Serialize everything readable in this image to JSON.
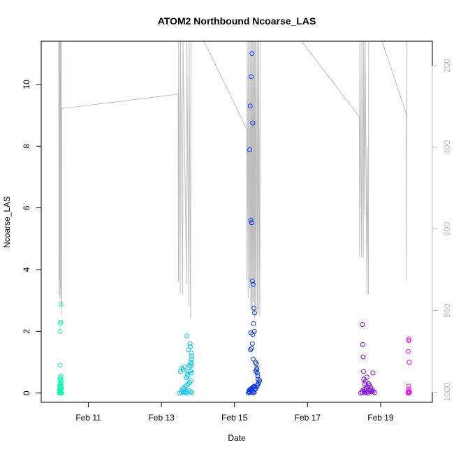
{
  "chart_data": {
    "type": "scatter",
    "title": "ATOM2 Northbound Ncoarse_LAS",
    "xlabel": "Date",
    "ylabel": "Ncoarse_LAS",
    "xlim": [
      "2014-02-09 17:00",
      "2014-02-20 10:00"
    ],
    "ylim": [
      -0.3,
      11.4
    ],
    "y_ticks": [
      0,
      2,
      4,
      6,
      8,
      10
    ],
    "x_ticks": [
      {
        "date": "2014-02-11",
        "label": "Feb 11"
      },
      {
        "date": "2014-02-13",
        "label": "Feb 13"
      },
      {
        "date": "2014-02-15",
        "label": "Feb 15"
      },
      {
        "date": "2014-02-17",
        "label": "Feb 17"
      },
      {
        "date": "2014-02-19",
        "label": "Feb 19"
      }
    ],
    "right_axis": {
      "quantity": "depth",
      "reversed": true,
      "range": [
        140,
        1025
      ],
      "ticks": [
        200,
        400,
        600,
        800,
        1000
      ],
      "color": "#bdbdbd"
    },
    "colors": {
      "feb10": "#00ffb3",
      "feb13": "#00c7ff",
      "feb15": "#0033ff",
      "feb18": "#7a00ff",
      "feb19": "#ff00ff",
      "depth_line": "#bdbdbd"
    },
    "series": [
      {
        "color": "#00ffb3",
        "x": [
          "2014-02-10 05:00",
          "2014-02-10 05:10",
          "2014-02-10 05:20",
          "2014-02-10 05:30",
          "2014-02-10 05:40",
          "2014-02-10 05:50",
          "2014-02-10 06:00",
          "2014-02-10 06:10",
          "2014-02-10 06:20",
          "2014-02-10 05:05",
          "2014-02-10 05:25",
          "2014-02-10 05:45",
          "2014-02-10 06:05",
          "2014-02-10 05:15",
          "2014-02-10 05:35",
          "2014-02-10 05:55",
          "2014-02-10 06:15",
          "2014-02-10 05:20",
          "2014-02-10 05:40",
          "2014-02-10 06:00",
          "2014-02-10 05:30",
          "2014-02-10 05:50",
          "2014-02-10 05:10",
          "2014-02-10 06:10",
          "2014-02-10 05:30",
          "2014-02-10 05:40",
          "2014-02-10 05:50",
          "2014-02-10 06:00",
          "2014-02-10 05:20",
          "2014-02-10 05:35",
          "2014-02-10 05:45",
          "2014-02-10 05:55"
        ],
        "y": [
          0.0,
          0.02,
          0.01,
          0.05,
          0.0,
          0.03,
          0.08,
          0.01,
          0.0,
          0.1,
          0.12,
          0.15,
          0.2,
          0.25,
          0.3,
          0.35,
          0.4,
          0.45,
          0.5,
          0.55,
          0.9,
          0.3,
          0.2,
          0.15,
          2.0,
          2.25,
          2.3,
          2.88,
          0.05,
          0.06,
          0.07,
          0.04
        ]
      },
      {
        "color": "#00c7ff",
        "x": [
          "2014-02-13 12:00",
          "2014-02-13 13:00",
          "2014-02-13 14:00",
          "2014-02-13 15:00",
          "2014-02-13 16:00",
          "2014-02-13 17:00",
          "2014-02-13 18:00",
          "2014-02-13 19:00",
          "2014-02-13 20:00",
          "2014-02-13 13:30",
          "2014-02-13 14:30",
          "2014-02-13 15:30",
          "2014-02-13 16:30",
          "2014-02-13 17:30",
          "2014-02-13 18:30",
          "2014-02-13 19:30",
          "2014-02-13 12:30",
          "2014-02-13 13:15",
          "2014-02-13 14:15",
          "2014-02-13 15:15",
          "2014-02-13 16:15",
          "2014-02-13 17:15",
          "2014-02-13 18:15",
          "2014-02-13 19:15",
          "2014-02-13 19:45",
          "2014-02-13 20:00",
          "2014-02-13 19:30",
          "2014-02-13 19:00",
          "2014-02-13 18:45",
          "2014-02-13 17:45",
          "2014-02-13 16:45",
          "2014-02-13 18:00",
          "2014-02-13 17:00",
          "2014-02-13 19:50",
          "2014-02-13 19:40",
          "2014-02-13 19:20",
          "2014-02-13 19:10"
        ],
        "y": [
          0.0,
          0.02,
          0.05,
          0.01,
          0.03,
          0.0,
          0.08,
          0.04,
          0.02,
          0.1,
          0.15,
          0.2,
          0.25,
          0.3,
          0.35,
          0.4,
          0.7,
          0.8,
          0.75,
          0.85,
          0.5,
          0.6,
          0.9,
          1.0,
          1.1,
          1.2,
          1.3,
          1.5,
          1.6,
          1.4,
          1.85,
          0.7,
          0.55,
          0.65,
          0.95,
          0.88,
          0.72
        ]
      },
      {
        "color": "#0033ff",
        "x": [
          "2014-02-15 09:00",
          "2014-02-15 09:30",
          "2014-02-15 10:00",
          "2014-02-15 10:30",
          "2014-02-15 11:00",
          "2014-02-15 11:30",
          "2014-02-15 12:00",
          "2014-02-15 12:30",
          "2014-02-15 13:00",
          "2014-02-15 13:30",
          "2014-02-15 14:00",
          "2014-02-15 14:30",
          "2014-02-15 15:00",
          "2014-02-15 15:30",
          "2014-02-15 16:00",
          "2014-02-15 16:30",
          "2014-02-15 10:00",
          "2014-02-15 10:45",
          "2014-02-15 11:15",
          "2014-02-15 11:45",
          "2014-02-15 12:15",
          "2014-02-15 12:45",
          "2014-02-15 13:15",
          "2014-02-15 13:45",
          "2014-02-15 14:15",
          "2014-02-15 14:45",
          "2014-02-15 10:15",
          "2014-02-15 11:00",
          "2014-02-15 11:30",
          "2014-02-15 12:00",
          "2014-02-15 12:30",
          "2014-02-15 13:00",
          "2014-02-15 10:30",
          "2014-02-15 11:15",
          "2014-02-15 12:00",
          "2014-02-15 10:45",
          "2014-02-15 11:45",
          "2014-02-15 12:15",
          "2014-02-15 10:00",
          "2014-02-15 10:30",
          "2014-02-15 11:00",
          "2014-02-15 11:30",
          "2014-02-15 12:00",
          "2014-02-15 12:30",
          "2014-02-15 13:00",
          "2014-02-15 14:00",
          "2014-02-15 14:30",
          "2014-02-15 15:00",
          "2014-02-15 15:15",
          "2014-02-15 15:30"
        ],
        "y": [
          0.0,
          0.05,
          0.02,
          0.08,
          0.1,
          0.03,
          0.06,
          0.01,
          0.04,
          0.12,
          0.15,
          0.2,
          0.25,
          0.3,
          0.35,
          0.4,
          7.88,
          5.6,
          5.52,
          3.63,
          3.52,
          2.75,
          2.6,
          1.0,
          0.95,
          0.8,
          9.3,
          10.25,
          11.0,
          8.75,
          2.25,
          2.0,
          1.4,
          1.45,
          1.9,
          1.95,
          1.6,
          1.1,
          0.1,
          0.12,
          0.14,
          0.16,
          0.18,
          0.2,
          0.22,
          0.7,
          0.75,
          0.65,
          0.55,
          0.45
        ]
      },
      {
        "color": "#7a00ff",
        "x": [
          "2014-02-18 11:00",
          "2014-02-18 12:00",
          "2014-02-18 13:00",
          "2014-02-18 14:00",
          "2014-02-18 15:00",
          "2014-02-18 16:00",
          "2014-02-18 17:00",
          "2014-02-18 18:00",
          "2014-02-18 19:00",
          "2014-02-18 20:00",
          "2014-02-18 12:30",
          "2014-02-18 13:30",
          "2014-02-18 14:30",
          "2014-02-18 15:30",
          "2014-02-18 16:30",
          "2014-02-18 17:30",
          "2014-02-18 18:30",
          "2014-02-18 12:00",
          "2014-02-18 12:15",
          "2014-02-18 12:30",
          "2014-02-18 12:45",
          "2014-02-18 13:00",
          "2014-02-18 13:30",
          "2014-02-18 14:00",
          "2014-02-18 15:00",
          "2014-02-18 16:00",
          "2014-02-18 19:00"
        ],
        "y": [
          0.0,
          0.02,
          0.05,
          0.01,
          0.03,
          0.0,
          0.08,
          0.04,
          0.06,
          0.02,
          0.1,
          0.12,
          0.15,
          0.2,
          0.25,
          0.18,
          0.1,
          2.22,
          1.57,
          1.17,
          0.7,
          0.45,
          0.3,
          0.38,
          0.52,
          0.3,
          0.65
        ]
      },
      {
        "color": "#ff00ff",
        "x": [
          "2014-02-19 18:00",
          "2014-02-19 18:15",
          "2014-02-19 18:30",
          "2014-02-19 18:45",
          "2014-02-19 19:00",
          "2014-02-19 18:20",
          "2014-02-19 18:40",
          "2014-02-19 18:10",
          "2014-02-19 18:50",
          "2014-02-19 18:25",
          "2014-02-19 18:35"
        ],
        "y": [
          0.0,
          0.02,
          0.05,
          0.01,
          0.03,
          1.7,
          1.75,
          1.35,
          1.0,
          0.22,
          0.12
        ]
      }
    ]
  }
}
